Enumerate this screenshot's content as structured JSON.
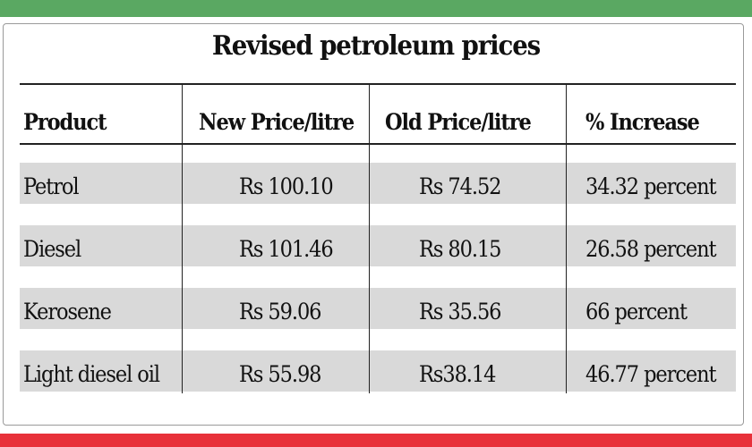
{
  "colors": {
    "top_band": "#5aa862",
    "bottom_band": "#e8313a",
    "row_stripe": "#d9d9d9",
    "text": "#111111"
  },
  "title": "Revised petroleum prices",
  "columns": [
    "Product",
    "New Price/litre",
    "Old Price/litre",
    "% Increase"
  ],
  "rows": [
    {
      "product": "Petrol",
      "new_price": "Rs 100.10",
      "old_price": "Rs 74.52",
      "increase": "34.32 percent"
    },
    {
      "product": "Diesel",
      "new_price": "Rs 101.46",
      "old_price": "Rs 80.15",
      "increase": "26.58 percent"
    },
    {
      "product": "Kerosene",
      "new_price": "Rs 59.06",
      "old_price": "Rs 35.56",
      "increase": "66 percent"
    },
    {
      "product": "Light diesel oil",
      "new_price": "Rs 55.98",
      "old_price": "Rs38.14",
      "increase": "46.77 percent"
    }
  ]
}
